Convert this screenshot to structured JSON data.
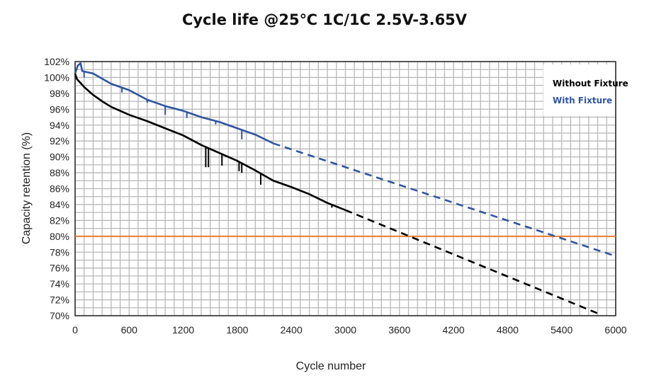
{
  "chart_data": {
    "type": "line",
    "title": "Cycle life @25℃ 1C/1C 2.5V-3.65V",
    "xlabel": "Cycle number",
    "ylabel": "Capacity retention (%)",
    "xlim": [
      0,
      6000
    ],
    "ylim": [
      70,
      102
    ],
    "x_ticks": [
      "0",
      "600",
      "1200",
      "1800",
      "2400",
      "3000",
      "3600",
      "4200",
      "4800",
      "5400",
      "6000"
    ],
    "y_ticks": [
      "70%",
      "72%",
      "74%",
      "76%",
      "78%",
      "80%",
      "82%",
      "84%",
      "86%",
      "88%",
      "90%",
      "92%",
      "94%",
      "96%",
      "98%",
      "100%",
      "102%"
    ],
    "grid": true,
    "legend_position": "top-right",
    "reference_line": {
      "y": 80,
      "color": "#ED7D31"
    },
    "series": [
      {
        "name": "Without Fixture",
        "color": "#000000",
        "measured": [
          [
            0,
            100.5
          ],
          [
            20,
            99.8
          ],
          [
            100,
            98.8
          ],
          [
            200,
            97.8
          ],
          [
            300,
            97.0
          ],
          [
            400,
            96.3
          ],
          [
            600,
            95.3
          ],
          [
            800,
            94.5
          ],
          [
            1000,
            93.6
          ],
          [
            1200,
            92.7
          ],
          [
            1400,
            91.5
          ],
          [
            1600,
            90.5
          ],
          [
            1800,
            89.5
          ],
          [
            2000,
            88.3
          ],
          [
            2200,
            87.0
          ],
          [
            2400,
            86.2
          ],
          [
            2600,
            85.3
          ],
          [
            2800,
            84.2
          ],
          [
            3000,
            83.3
          ]
        ],
        "dips": [
          [
            1450,
            88.7
          ],
          [
            1480,
            88.7
          ],
          [
            1630,
            88.9
          ],
          [
            1820,
            88.2
          ],
          [
            1850,
            88.0
          ],
          [
            2060,
            86.5
          ],
          [
            2850,
            83.6
          ]
        ],
        "projection": [
          [
            3000,
            83.3
          ],
          [
            5800,
            70.3
          ]
        ]
      },
      {
        "name": "With Fixture",
        "color": "#2F55A4",
        "measured": [
          [
            0,
            100.5
          ],
          [
            30,
            101.5
          ],
          [
            60,
            101.8
          ],
          [
            80,
            100.8
          ],
          [
            200,
            100.5
          ],
          [
            400,
            99.2
          ],
          [
            600,
            98.4
          ],
          [
            800,
            97.2
          ],
          [
            1000,
            96.4
          ],
          [
            1200,
            95.8
          ],
          [
            1400,
            95.0
          ],
          [
            1600,
            94.4
          ],
          [
            1800,
            93.6
          ],
          [
            2000,
            92.8
          ],
          [
            2200,
            91.7
          ]
        ],
        "dips": [
          [
            100,
            100.0
          ],
          [
            520,
            98.1
          ],
          [
            800,
            96.8
          ],
          [
            1000,
            95.3
          ],
          [
            1240,
            94.9
          ],
          [
            1560,
            94.1
          ],
          [
            1850,
            92.2
          ]
        ],
        "projection": [
          [
            2200,
            91.7
          ],
          [
            6000,
            77.5
          ]
        ]
      }
    ]
  }
}
